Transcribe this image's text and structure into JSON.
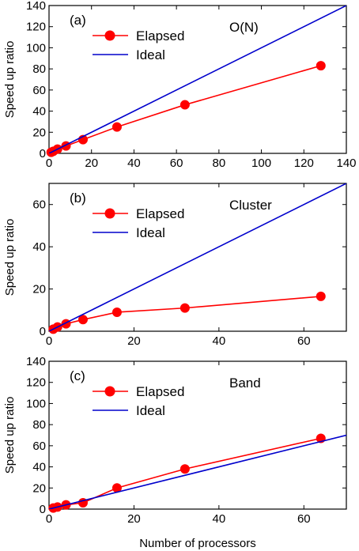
{
  "chart_data": [
    {
      "type": "line",
      "panel_label": "(a)",
      "annotation": "O(N)",
      "ylabel": "Speed up ratio",
      "xlim": [
        0,
        140
      ],
      "ylim": [
        0,
        140
      ],
      "xticks": [
        0,
        20,
        40,
        60,
        80,
        100,
        120,
        140
      ],
      "yticks": [
        0,
        20,
        40,
        60,
        80,
        100,
        120,
        140
      ],
      "legend_position": "top-left",
      "series": [
        {
          "name": "Elapsed",
          "color": "#ff0000",
          "marker": "circle",
          "x": [
            1,
            2,
            4,
            8,
            16,
            32,
            64,
            128
          ],
          "y": [
            1,
            2,
            4,
            7,
            13,
            25,
            46,
            83
          ]
        },
        {
          "name": "Ideal",
          "color": "#0000cc",
          "marker": "none",
          "x": [
            0,
            140
          ],
          "y": [
            0,
            140
          ]
        }
      ]
    },
    {
      "type": "line",
      "panel_label": "(b)",
      "annotation": "Cluster",
      "ylabel": "Speed up ratio",
      "xlim": [
        0,
        70
      ],
      "ylim": [
        0,
        70
      ],
      "xticks": [
        0,
        20,
        40,
        60
      ],
      "yticks": [
        0,
        20,
        40,
        60
      ],
      "legend_position": "top-left",
      "series": [
        {
          "name": "Elapsed",
          "color": "#ff0000",
          "marker": "circle",
          "x": [
            1,
            2,
            4,
            8,
            16,
            32,
            64
          ],
          "y": [
            1,
            2,
            3.5,
            5.5,
            9,
            11,
            16.5
          ]
        },
        {
          "name": "Ideal",
          "color": "#0000cc",
          "marker": "none",
          "x": [
            0,
            70
          ],
          "y": [
            0,
            70
          ]
        }
      ]
    },
    {
      "type": "line",
      "panel_label": "(c)",
      "annotation": "Band",
      "ylabel": "Speed up ratio",
      "xlabel": "Number of processors",
      "xlim": [
        0,
        70
      ],
      "ylim": [
        0,
        140
      ],
      "xticks": [
        0,
        20,
        40,
        60
      ],
      "yticks": [
        0,
        20,
        40,
        60,
        80,
        100,
        120,
        140
      ],
      "legend_position": "top-left",
      "series": [
        {
          "name": "Elapsed",
          "color": "#ff0000",
          "marker": "circle",
          "x": [
            1,
            2,
            4,
            8,
            16,
            32,
            64
          ],
          "y": [
            1,
            2,
            4,
            6,
            20,
            38,
            67
          ]
        },
        {
          "name": "Ideal",
          "color": "#0000cc",
          "marker": "none",
          "x": [
            0,
            70
          ],
          "y": [
            0,
            70
          ]
        }
      ]
    }
  ]
}
